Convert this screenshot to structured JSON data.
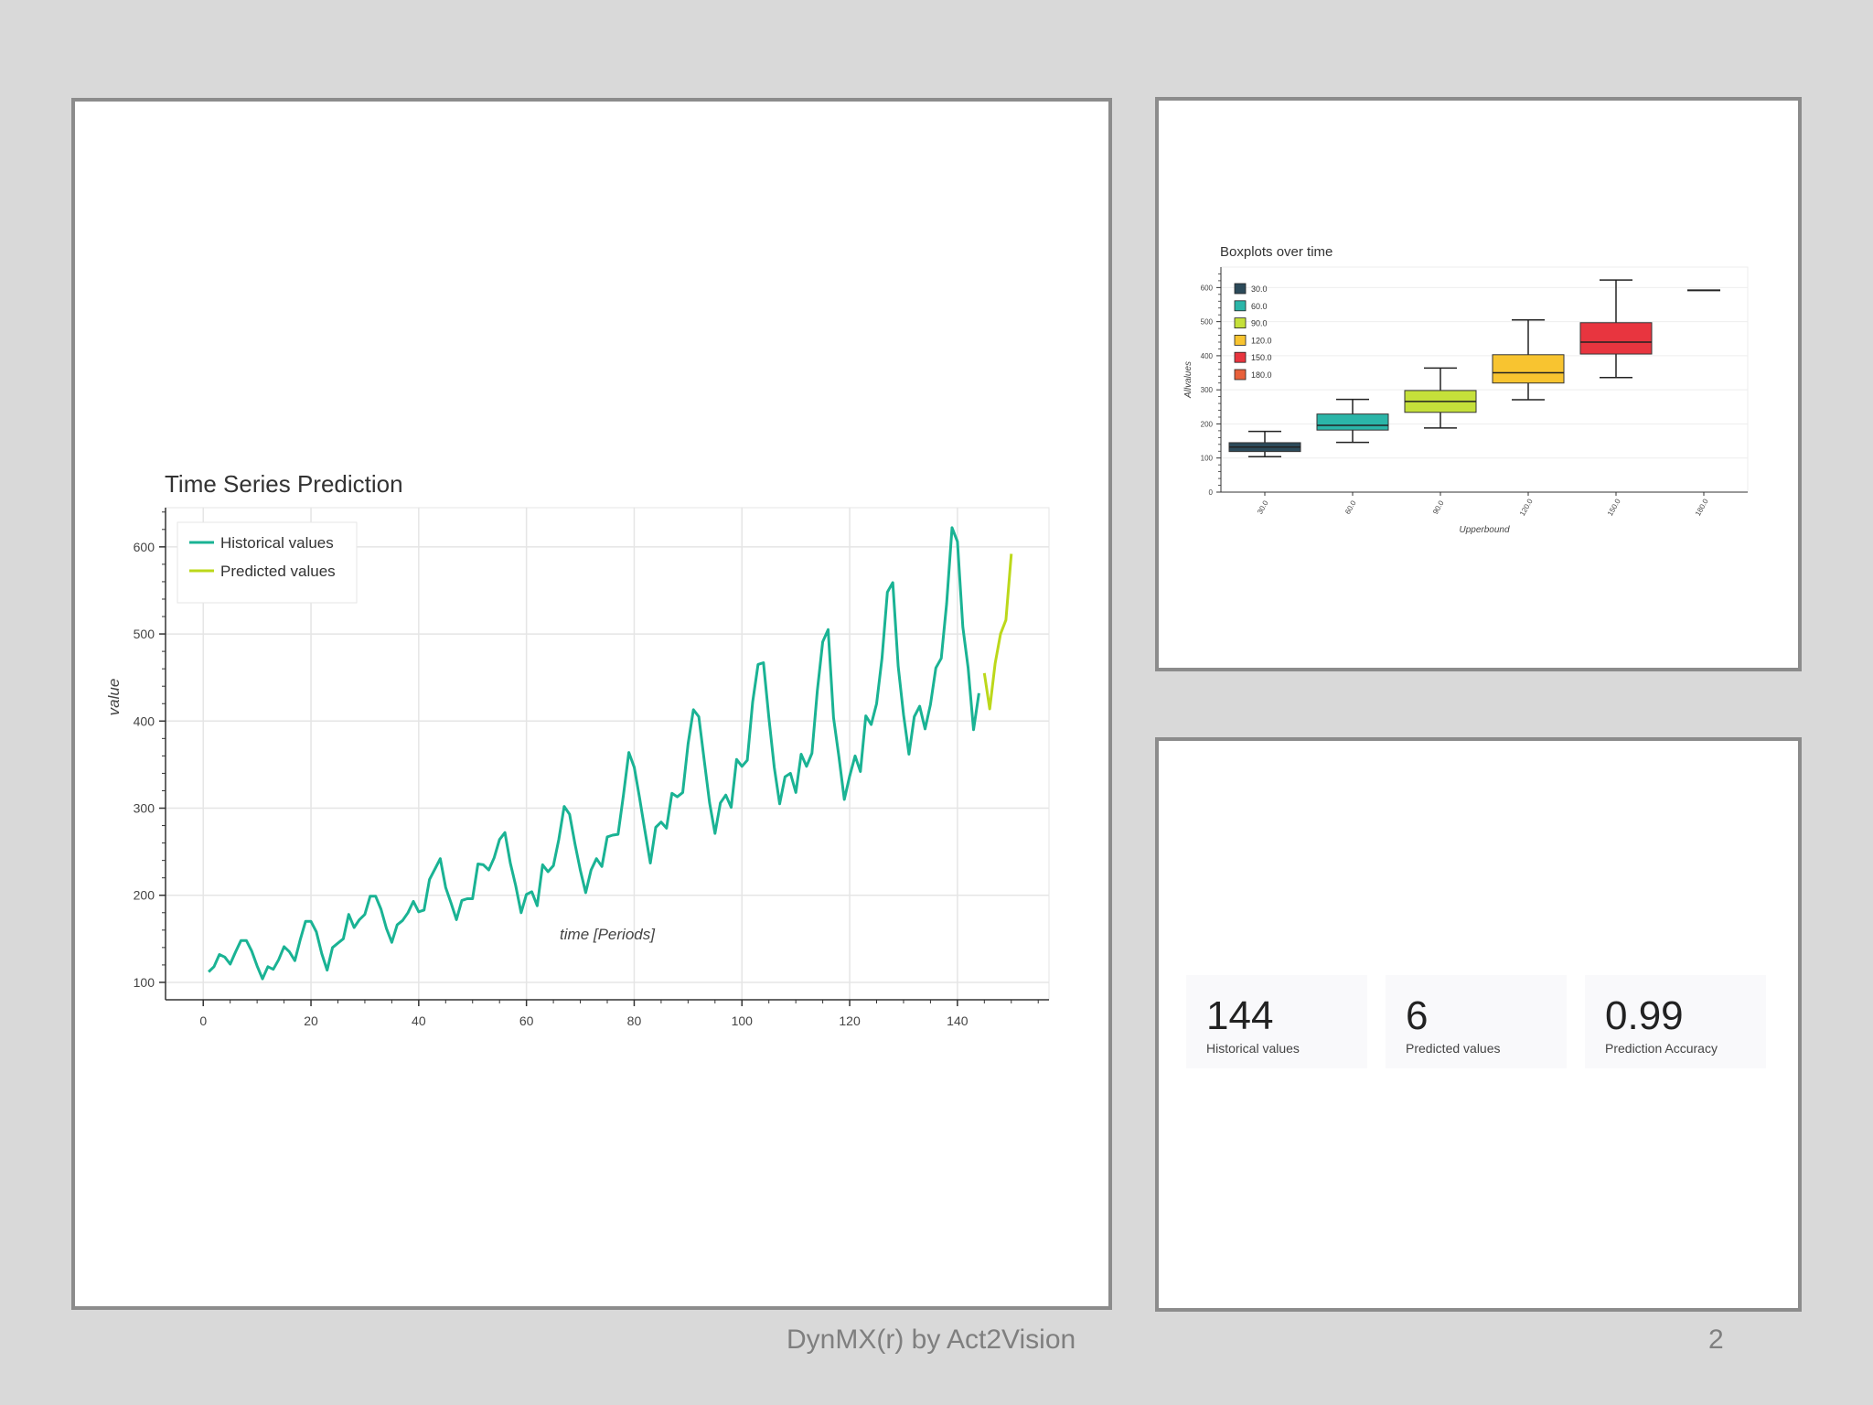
{
  "chart_data": [
    {
      "type": "line",
      "title": "Time Series Prediction",
      "xlabel": "time [Periods]",
      "ylabel": "value",
      "xlim": [
        -7,
        157
      ],
      "ylim": [
        80,
        645
      ],
      "x_ticks": [
        0,
        20,
        40,
        60,
        80,
        100,
        120,
        140
      ],
      "y_ticks": [
        100,
        200,
        300,
        400,
        500,
        600
      ],
      "grid": true,
      "legend_position": "top-left",
      "series": [
        {
          "name": "Historical values",
          "color": "#1ab394",
          "x_start": 1,
          "values": [
            112,
            118,
            132,
            129,
            121,
            135,
            148,
            148,
            136,
            119,
            104,
            118,
            115,
            126,
            141,
            135,
            125,
            149,
            170,
            170,
            158,
            133,
            114,
            140,
            145,
            150,
            178,
            163,
            172,
            178,
            199,
            199,
            184,
            162,
            146,
            166,
            171,
            180,
            193,
            181,
            183,
            218,
            230,
            242,
            209,
            191,
            172,
            194,
            196,
            196,
            236,
            235,
            229,
            243,
            264,
            272,
            237,
            211,
            180,
            201,
            204,
            188,
            235,
            227,
            234,
            264,
            302,
            293,
            259,
            229,
            203,
            229,
            242,
            233,
            267,
            269,
            270,
            315,
            364,
            347,
            312,
            274,
            237,
            278,
            284,
            277,
            317,
            313,
            318,
            374,
            413,
            405,
            355,
            306,
            271,
            306,
            315,
            301,
            356,
            348,
            355,
            422,
            465,
            467,
            404,
            347,
            305,
            336,
            340,
            318,
            362,
            348,
            363,
            435,
            491,
            505,
            404,
            359,
            310,
            337,
            360,
            342,
            406,
            396,
            420,
            472,
            548,
            559,
            463,
            407,
            362,
            405,
            417,
            391,
            419,
            461,
            472,
            535,
            622,
            606,
            508,
            461,
            390,
            432
          ]
        },
        {
          "name": "Predicted values",
          "color": "#bcd81a",
          "x_start": 145,
          "values": [
            455,
            414,
            466,
            500,
            516,
            592
          ]
        }
      ]
    },
    {
      "type": "box",
      "title": "Boxplots over time",
      "xlabel": "Upperbound",
      "ylabel": "Allvalues",
      "ylim": [
        0,
        660
      ],
      "y_ticks": [
        0,
        100,
        200,
        300,
        400,
        500,
        600
      ],
      "categories": [
        "30.0",
        "60.0",
        "90.0",
        "120.0",
        "150.0",
        "180.0"
      ],
      "legend_position": "top-left",
      "boxes": [
        {
          "label": "30.0",
          "color": "#2c4a5a",
          "min": 104,
          "q1": 119,
          "median": 132,
          "q3": 145,
          "max": 178
        },
        {
          "label": "60.0",
          "color": "#2bb5a8",
          "min": 146,
          "q1": 182,
          "median": 196,
          "q3": 229,
          "max": 272
        },
        {
          "label": "90.0",
          "color": "#c5e03a",
          "min": 188,
          "q1": 234,
          "median": 266,
          "q3": 298,
          "max": 364
        },
        {
          "label": "120.0",
          "color": "#f8c430",
          "min": 271,
          "q1": 320,
          "median": 350,
          "q3": 403,
          "max": 505
        },
        {
          "label": "150.0",
          "color": "#e8353f",
          "min": 336,
          "q1": 405,
          "median": 440,
          "q3": 497,
          "max": 622
        },
        {
          "label": "180.0",
          "color": "#e8603a",
          "min": 592,
          "q1": 592,
          "median": 592,
          "q3": 592,
          "max": 592
        }
      ]
    }
  ],
  "stats": [
    {
      "value": "144",
      "label": "Historical values"
    },
    {
      "value": "6",
      "label": "Predicted values"
    },
    {
      "value": "0.99",
      "label": "Prediction Accuracy"
    }
  ],
  "footer": {
    "text": "DynMX(r) by Act2Vision",
    "page": "2"
  }
}
